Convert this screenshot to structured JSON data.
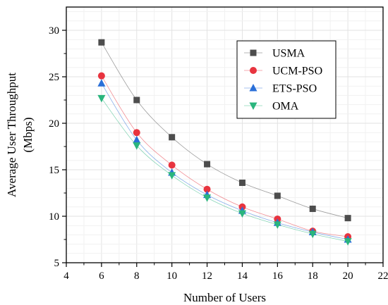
{
  "chart_data": {
    "type": "line",
    "xlabel": "Number of Users",
    "ylabel_lines": [
      "Average User Throughput",
      "(Mbps)"
    ],
    "xlim": [
      4,
      22
    ],
    "ylim": [
      5,
      32.5
    ],
    "xticks": [
      4,
      6,
      8,
      10,
      12,
      14,
      16,
      18,
      20,
      22
    ],
    "yticks": [
      5,
      10,
      15,
      20,
      25,
      30
    ],
    "x": [
      6,
      8,
      10,
      12,
      14,
      16,
      18,
      20
    ],
    "grid": true,
    "legend_position": "top-right",
    "series": [
      {
        "name": "USMA",
        "marker": "square",
        "color": "#4d4d4d",
        "values": [
          28.7,
          22.5,
          18.5,
          15.6,
          13.6,
          12.2,
          10.8,
          9.8
        ]
      },
      {
        "name": "UCM-PSO",
        "marker": "circle",
        "color": "#e8343f",
        "values": [
          25.1,
          19.0,
          15.5,
          12.9,
          11.0,
          9.7,
          8.4,
          7.8
        ]
      },
      {
        "name": "ETS-PSO",
        "marker": "triangle-up",
        "color": "#2a6fd8",
        "values": [
          24.3,
          18.2,
          14.7,
          12.3,
          10.6,
          9.3,
          8.3,
          7.5
        ]
      },
      {
        "name": "OMA",
        "marker": "triangle-down",
        "color": "#2ab57d",
        "values": [
          22.7,
          17.6,
          14.4,
          12.0,
          10.3,
          9.1,
          8.1,
          7.3
        ]
      }
    ]
  }
}
